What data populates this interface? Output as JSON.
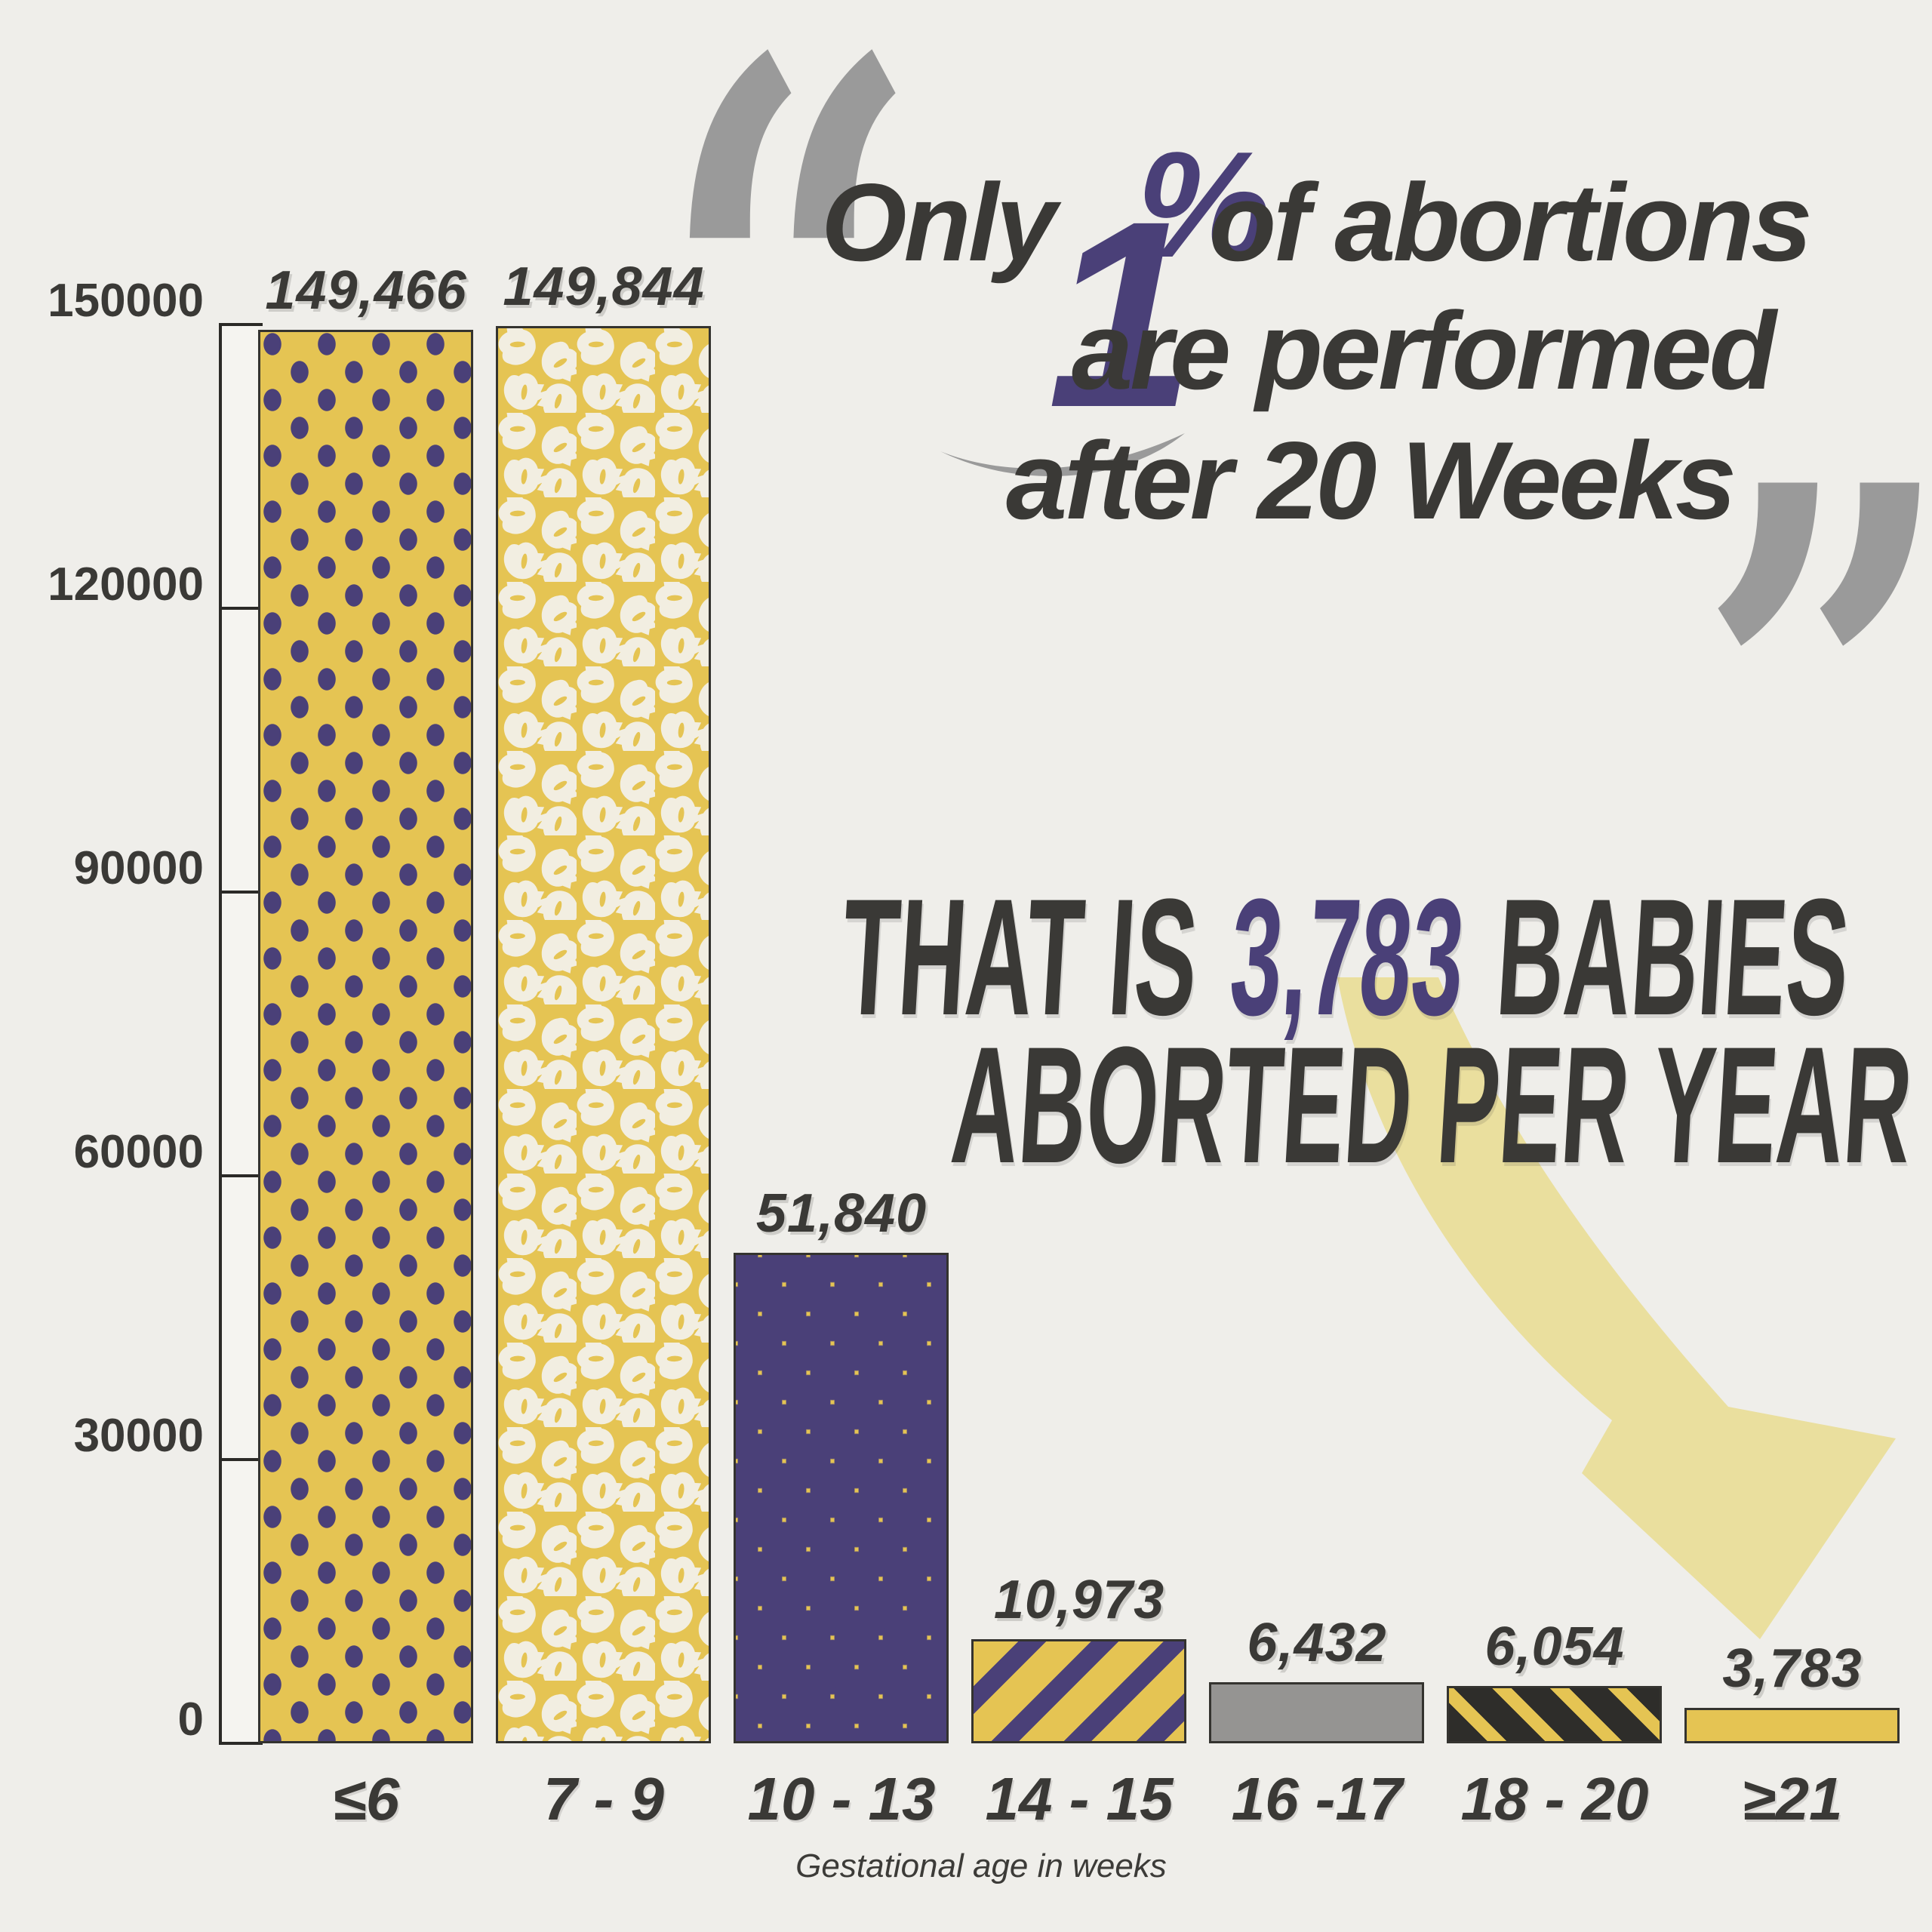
{
  "quote": {
    "open_mark": "“",
    "close_mark": "”",
    "prefix": "Only",
    "big_number": "1",
    "percent_sign": "%",
    "suffix": "of abortions",
    "line2": "are performed",
    "line3": "after 20 Weeks"
  },
  "stat": {
    "pre": "THAT IS",
    "value": "3,783",
    "post": "BABIES",
    "line2": "ABORTED PER YEAR"
  },
  "chart_data": {
    "type": "bar",
    "categories": [
      "≤6",
      "7 - 9",
      "10 - 13",
      "14 - 15",
      "16 -17",
      "18 - 20",
      "≥21"
    ],
    "values": [
      149466,
      149844,
      51840,
      10973,
      6432,
      6054,
      3783
    ],
    "value_labels": [
      "149,466",
      "149,844",
      "51,840",
      "10,973",
      "6,432",
      "6,054",
      "3,783"
    ],
    "xlabel": "Gestational age in weeks",
    "ylabel": "",
    "ylim": [
      0,
      150000
    ],
    "yticks": [
      0,
      30000,
      60000,
      90000,
      120000,
      150000
    ],
    "ytick_labels": [
      "0",
      "30000",
      "60000",
      "90000",
      "120000",
      "150000"
    ],
    "grid": false,
    "legend": false,
    "bar_styles": [
      "purple-dots-on-yellow",
      "white-leaves-on-yellow",
      "purple-circles-on-yellow",
      "purple-diagonal-stripes-on-yellow",
      "solid-gray",
      "yellow-diagonal-stripes-on-black",
      "solid-yellow"
    ]
  },
  "colors": {
    "background": "#efeeea",
    "charcoal": "#3a3936",
    "purple": "#4a4078",
    "yellow": "#e5c453",
    "cream_leaf": "#f2eee1",
    "quote_gray": "#9a9a9a",
    "gray_bar": "#959492",
    "black_bar": "#2e2d2a",
    "arrow": "#eadf9e"
  }
}
